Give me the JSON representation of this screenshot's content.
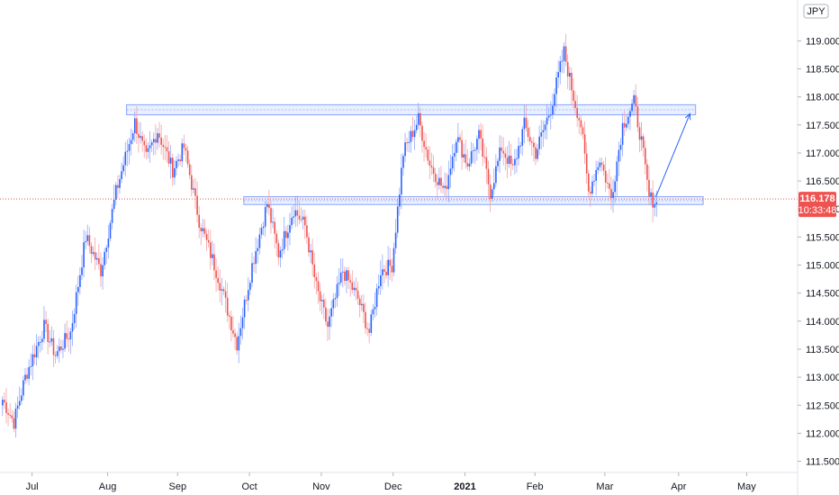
{
  "chart_data": {
    "type": "candlestick",
    "title": "",
    "currency_label": "JPY",
    "ylim": [
      111.3,
      119.6
    ],
    "y_ticks": [
      "119.000",
      "118.500",
      "118.000",
      "117.500",
      "117.000",
      "116.500",
      "116.000",
      "115.500",
      "115.000",
      "114.500",
      "114.000",
      "113.500",
      "113.000",
      "112.500",
      "112.000",
      "111.500"
    ],
    "y_tick_values": [
      119.0,
      118.5,
      118.0,
      117.5,
      117.0,
      116.5,
      116.0,
      115.5,
      115.0,
      114.5,
      114.0,
      113.5,
      113.0,
      112.5,
      112.0,
      111.5
    ],
    "x_ticks": [
      "Jul",
      "Aug",
      "Sep",
      "Oct",
      "Nov",
      "Dec",
      "2021",
      "Feb",
      "Mar",
      "Apr",
      "May"
    ],
    "x_tick_bold": [
      false,
      false,
      false,
      false,
      false,
      false,
      true,
      false,
      false,
      false,
      false
    ],
    "last_price": "116.178",
    "last_price_value": 116.178,
    "countdown": "10:33:48",
    "grid": false,
    "colors": {
      "up": "#2962ff",
      "down": "#ef5350",
      "wick_up": "#90a8ff",
      "wick_down": "#f5a0a0",
      "zone": "#2962ff",
      "price_line": "#ef5350",
      "price_label": "#ef5350"
    },
    "zones": [
      {
        "low": 117.68,
        "high": 117.86,
        "start_index": 66,
        "end_index": 367
      },
      {
        "low": 116.08,
        "high": 116.22,
        "start_index": 128,
        "end_index": 371
      }
    ],
    "projection": {
      "from_index": 346,
      "from_value": 116.22,
      "to_index": 364,
      "to_value": 117.7
    },
    "anchors": [
      [
        0,
        112.6
      ],
      [
        6,
        112.2
      ],
      [
        12,
        113.0
      ],
      [
        22,
        113.9
      ],
      [
        28,
        113.4
      ],
      [
        36,
        113.8
      ],
      [
        44,
        115.5
      ],
      [
        52,
        114.9
      ],
      [
        60,
        116.3
      ],
      [
        70,
        117.55
      ],
      [
        76,
        116.9
      ],
      [
        82,
        117.4
      ],
      [
        90,
        116.7
      ],
      [
        96,
        117.1
      ],
      [
        104,
        115.8
      ],
      [
        114,
        114.8
      ],
      [
        124,
        113.6
      ],
      [
        132,
        115.0
      ],
      [
        140,
        116.1
      ],
      [
        146,
        115.2
      ],
      [
        154,
        116.0
      ],
      [
        160,
        115.7
      ],
      [
        166,
        114.6
      ],
      [
        172,
        113.9
      ],
      [
        180,
        114.9
      ],
      [
        188,
        114.4
      ],
      [
        194,
        113.8
      ],
      [
        200,
        114.9
      ],
      [
        206,
        115.0
      ],
      [
        212,
        117.0
      ],
      [
        220,
        117.6
      ],
      [
        226,
        116.8
      ],
      [
        234,
        116.3
      ],
      [
        240,
        117.3
      ],
      [
        246,
        116.8
      ],
      [
        252,
        117.3
      ],
      [
        258,
        116.3
      ],
      [
        264,
        117.1
      ],
      [
        270,
        116.7
      ],
      [
        276,
        117.5
      ],
      [
        282,
        117.0
      ],
      [
        290,
        117.8
      ],
      [
        297,
        118.8
      ],
      [
        302,
        118.0
      ],
      [
        306,
        117.5
      ],
      [
        310,
        116.3
      ],
      [
        316,
        116.9
      ],
      [
        322,
        116.2
      ],
      [
        328,
        117.5
      ],
      [
        334,
        117.9
      ],
      [
        338,
        117.2
      ],
      [
        342,
        116.2
      ],
      [
        346,
        116.12
      ]
    ],
    "last_index": 346,
    "x_tick_index": [
      16,
      56,
      93,
      131,
      169,
      207,
      245,
      282,
      319,
      358,
      394
    ]
  }
}
